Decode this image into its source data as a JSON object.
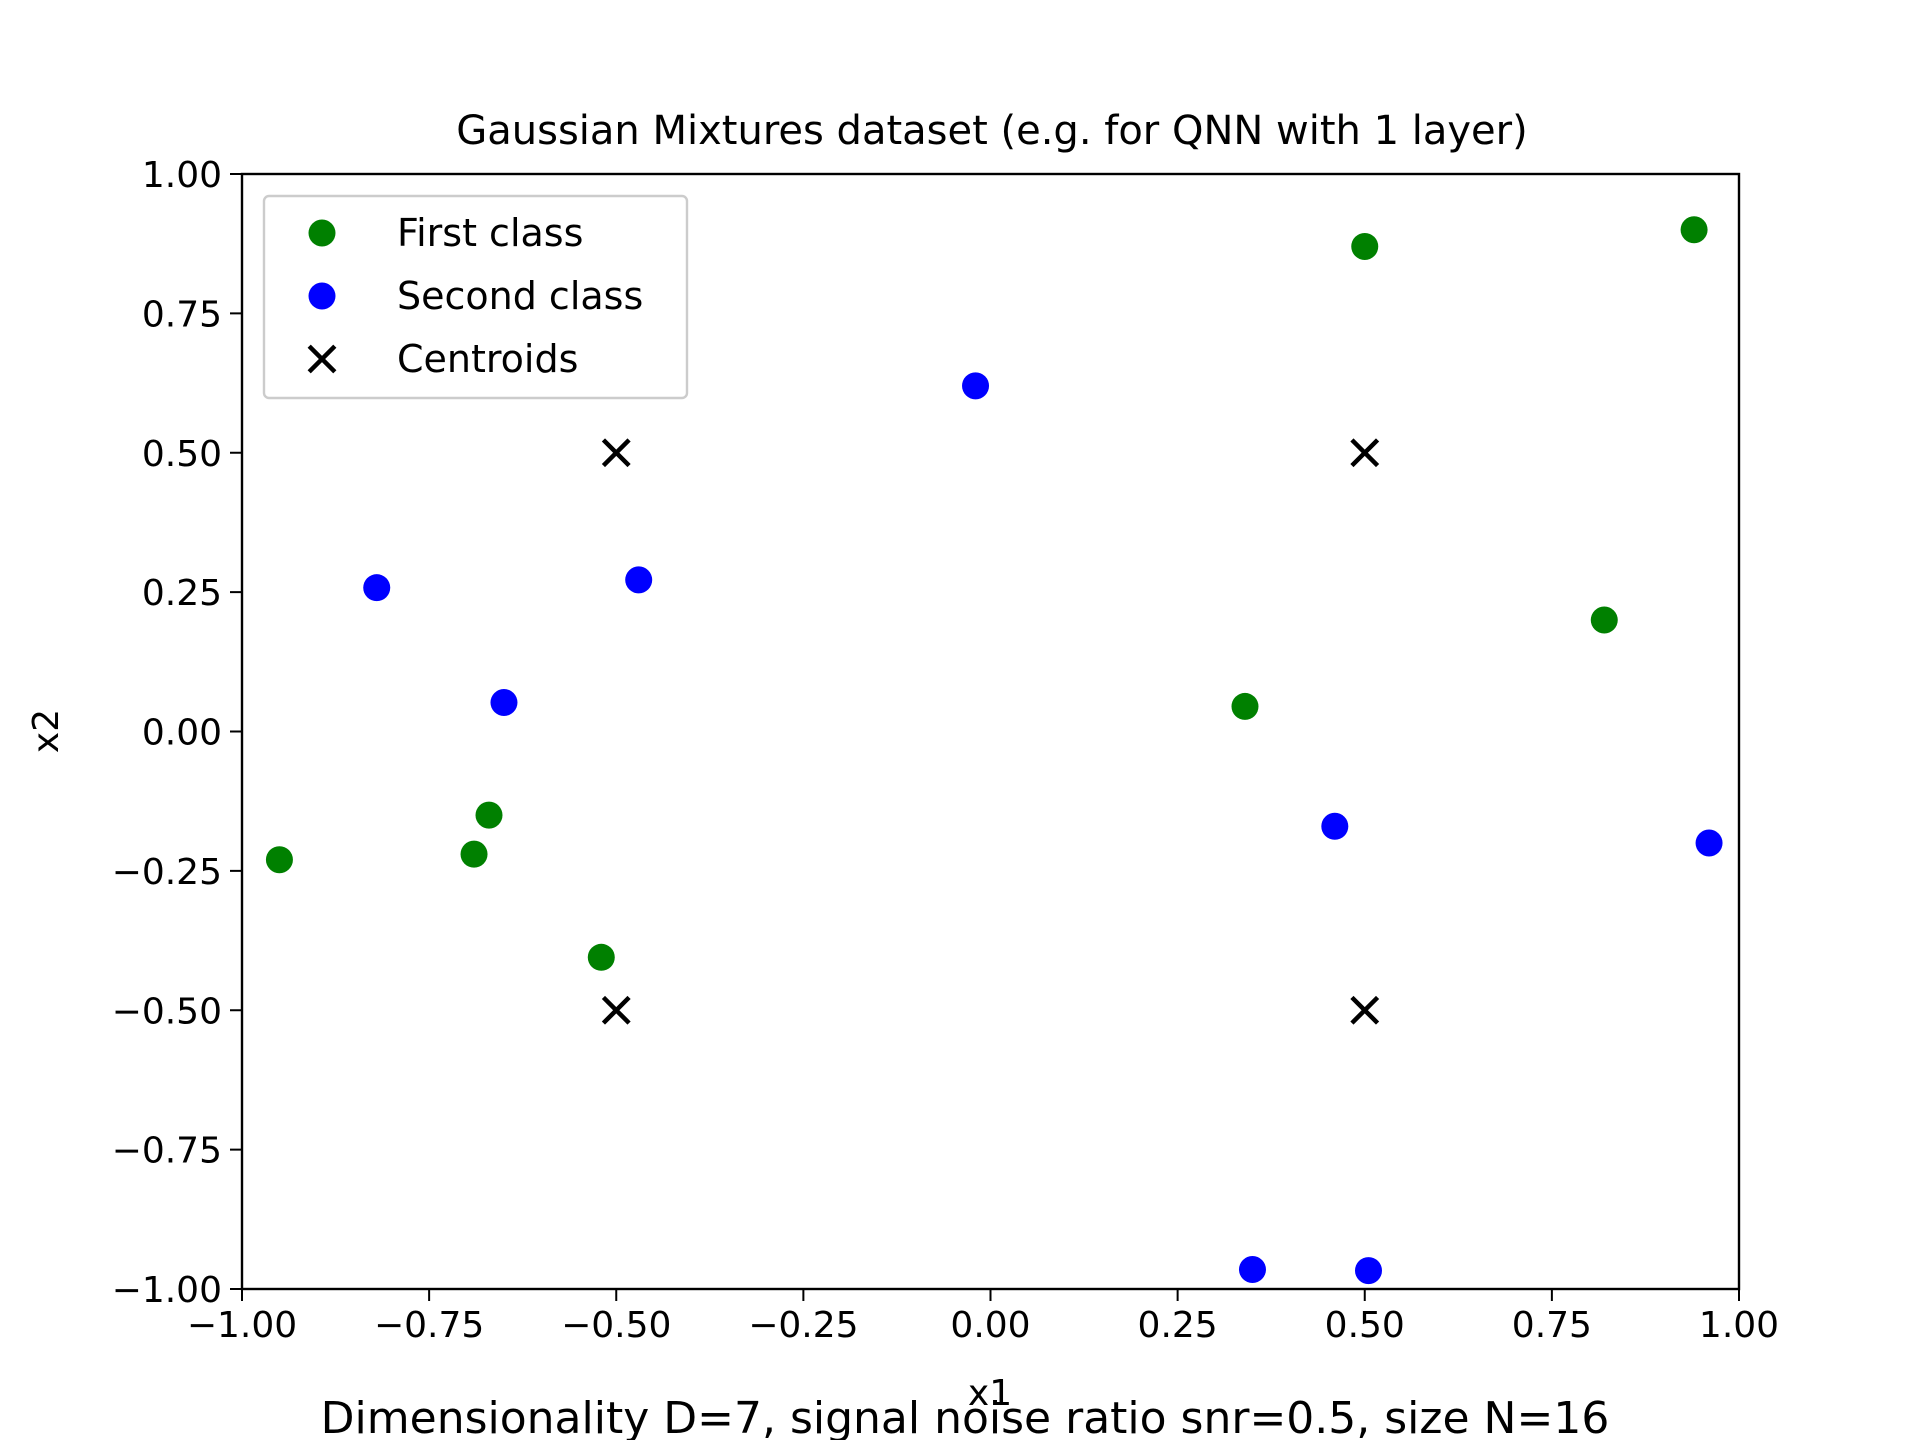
{
  "chart_data": {
    "type": "scatter",
    "title": "Gaussian Mixtures dataset (e.g. for QNN with 1 layer)",
    "xlabel": "x1",
    "ylabel": "x2",
    "caption": "Dimensionality D=7, signal noise ratio snr=0.5, size N=16",
    "xlim": [
      -1.0,
      1.0
    ],
    "ylim": [
      -1.0,
      1.0
    ],
    "xticks": [
      -1.0,
      -0.75,
      -0.5,
      -0.25,
      0.0,
      0.25,
      0.5,
      0.75,
      1.0
    ],
    "yticks": [
      -1.0,
      -0.75,
      -0.5,
      -0.25,
      0.0,
      0.25,
      0.5,
      0.75,
      1.0
    ],
    "xtick_labels": [
      "−1.00",
      "−0.75",
      "−0.50",
      "−0.25",
      "0.00",
      "0.25",
      "0.50",
      "0.75",
      "1.00"
    ],
    "ytick_labels": [
      "−1.00",
      "−0.75",
      "−0.50",
      "−0.25",
      "0.00",
      "0.25",
      "0.50",
      "0.75",
      "1.00"
    ],
    "grid": false,
    "legend_position": "top-left",
    "series": [
      {
        "name": "First class",
        "marker": "circle",
        "color": "#008000",
        "points": [
          [
            0.5,
            0.87
          ],
          [
            0.94,
            0.9
          ],
          [
            0.82,
            0.2
          ],
          [
            0.34,
            0.045
          ],
          [
            -0.95,
            -0.23
          ],
          [
            -0.69,
            -0.22
          ],
          [
            -0.67,
            -0.15
          ],
          [
            -0.52,
            -0.405
          ]
        ]
      },
      {
        "name": "Second class",
        "marker": "circle",
        "color": "#0000ff",
        "points": [
          [
            -0.02,
            0.62
          ],
          [
            -0.82,
            0.258
          ],
          [
            -0.47,
            0.272
          ],
          [
            -0.65,
            0.052
          ],
          [
            0.46,
            -0.17
          ],
          [
            0.96,
            -0.2
          ],
          [
            0.35,
            -0.965
          ],
          [
            0.505,
            -0.967
          ]
        ]
      },
      {
        "name": "Centroids",
        "marker": "x",
        "color": "#000000",
        "points": [
          [
            -0.5,
            0.5
          ],
          [
            0.5,
            0.5
          ],
          [
            -0.5,
            -0.5
          ],
          [
            0.5,
            -0.5
          ]
        ]
      }
    ]
  }
}
